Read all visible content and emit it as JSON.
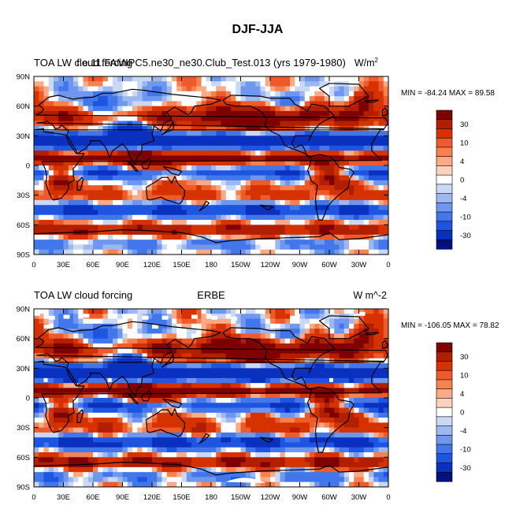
{
  "figure": {
    "title": "DJF-JJA"
  },
  "chart_data": [
    {
      "type": "heatmap",
      "title_left": "TOA LW cloud forcing",
      "title_center": "f.e.11.FAMIPC5.ne30_ne30.Club_Test.013 (yrs 1979-1980)",
      "units": "W/m",
      "units_superscript": "2",
      "stats": "MIN = -84.24 MAX =  89.58",
      "min": -84.24,
      "max": 89.58,
      "xlabels": [
        "0",
        "30E",
        "60E",
        "90E",
        "120E",
        "150E",
        "180",
        "150W",
        "120W",
        "90W",
        "60W",
        "30W",
        "0"
      ],
      "ylabels": [
        "90N",
        "60N",
        "30N",
        "0",
        "30S",
        "60S",
        "90S"
      ],
      "xlim": [
        0,
        360
      ],
      "ylim": [
        -90,
        90
      ],
      "colorbar_labels": [
        "30",
        "10",
        "4",
        "0",
        "-4",
        "-10",
        "-30"
      ],
      "colors": [
        "#7f0000",
        "#b21e00",
        "#d63200",
        "#ef5a2a",
        "#f7824f",
        "#fbaa86",
        "#fdd3bd",
        "#ffffff",
        "#c8d8f5",
        "#9db8f0",
        "#6f97ee",
        "#4277eb",
        "#1d55e0",
        "#0a30c0",
        "#00127f"
      ]
    },
    {
      "type": "heatmap",
      "title_left": "TOA LW cloud forcing",
      "title_center": "ERBE",
      "units": "W m^-2",
      "units_superscript": "",
      "stats": "MIN = -106.05 MAX =  78.82",
      "min": -106.05,
      "max": 78.82,
      "xlabels": [
        "0",
        "30E",
        "60E",
        "90E",
        "120E",
        "150E",
        "180",
        "150W",
        "120W",
        "90W",
        "60W",
        "30W",
        "0"
      ],
      "ylabels": [
        "90N",
        "60N",
        "30N",
        "0",
        "30S",
        "60S",
        "90S"
      ],
      "xlim": [
        0,
        360
      ],
      "ylim": [
        -90,
        90
      ],
      "colorbar_labels": [
        "30",
        "10",
        "4",
        "0",
        "-4",
        "-10",
        "-30"
      ],
      "colors": [
        "#7f0000",
        "#b21e00",
        "#d63200",
        "#ef5a2a",
        "#f7824f",
        "#fbaa86",
        "#fdd3bd",
        "#ffffff",
        "#c8d8f5",
        "#9db8f0",
        "#6f97ee",
        "#4277eb",
        "#1d55e0",
        "#0a30c0",
        "#00127f"
      ]
    }
  ]
}
